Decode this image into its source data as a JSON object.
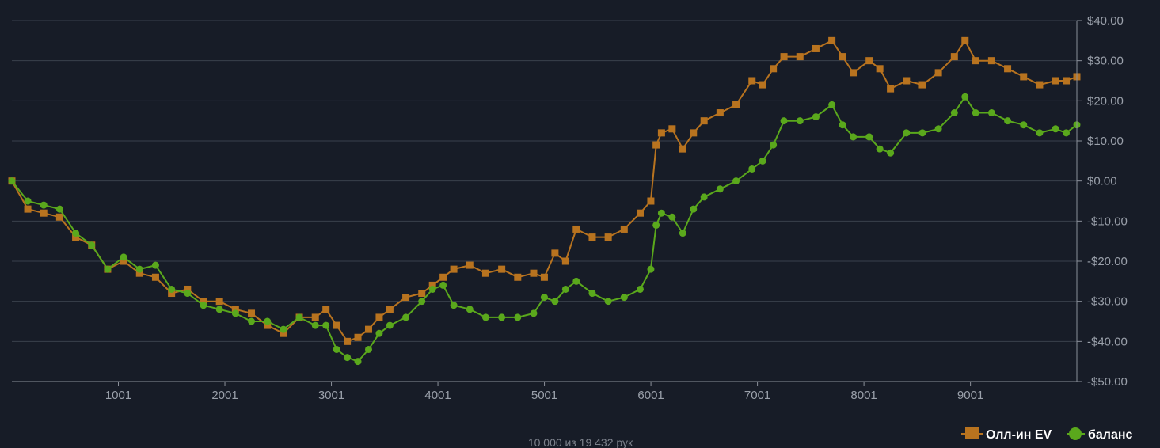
{
  "colors": {
    "background": "#171c27",
    "grid": "#3a404c",
    "ev_series": "#b8731f",
    "balance_series": "#5aa81c"
  },
  "footer": {
    "text": "10 000 из 19 432 рук"
  },
  "chart_data": {
    "type": "scatter",
    "title": "",
    "xlabel": "",
    "ylabel": "",
    "xlim": [
      1,
      10000
    ],
    "ylim": [
      -50,
      40
    ],
    "x_ticks": [
      1001,
      2001,
      3001,
      4001,
      5001,
      6001,
      7001,
      8001,
      9001
    ],
    "x_tick_labels": [
      "1001",
      "2001",
      "3001",
      "4001",
      "5001",
      "6001",
      "7001",
      "8001",
      "9001"
    ],
    "y_ticks": [
      40,
      30,
      20,
      10,
      0,
      -10,
      -20,
      -30,
      -40,
      -50
    ],
    "y_tick_labels": [
      "$40.00",
      "$30.00",
      "$20.00",
      "$10.00",
      "$0.00",
      "-$10.00",
      "-$20.00",
      "-$30.00",
      "-$40.00",
      "-$50.00"
    ],
    "y_axis_position": "right",
    "grid": true,
    "legend_position": "bottom-right",
    "x": [
      1,
      150,
      300,
      450,
      600,
      750,
      900,
      1050,
      1200,
      1350,
      1500,
      1650,
      1800,
      1950,
      2100,
      2250,
      2400,
      2550,
      2700,
      2850,
      2950,
      3050,
      3150,
      3250,
      3350,
      3450,
      3550,
      3700,
      3850,
      3950,
      4050,
      4150,
      4300,
      4450,
      4600,
      4750,
      4900,
      5000,
      5100,
      5200,
      5300,
      5450,
      5600,
      5750,
      5900,
      6000,
      6050,
      6100,
      6200,
      6300,
      6400,
      6500,
      6650,
      6800,
      6950,
      7050,
      7150,
      7250,
      7400,
      7550,
      7700,
      7800,
      7900,
      8050,
      8150,
      8250,
      8400,
      8550,
      8700,
      8850,
      8950,
      9050,
      9200,
      9350,
      9500,
      9650,
      9800,
      9900,
      10000
    ],
    "series": [
      {
        "name": "Олл-ин EV",
        "marker": "square",
        "values": [
          0,
          -7,
          -8,
          -9,
          -14,
          -16,
          -22,
          -20,
          -23,
          -24,
          -28,
          -27,
          -30,
          -30,
          -32,
          -33,
          -36,
          -38,
          -34,
          -34,
          -32,
          -36,
          -40,
          -39,
          -37,
          -34,
          -32,
          -29,
          -28,
          -26,
          -24,
          -22,
          -21,
          -23,
          -22,
          -24,
          -23,
          -24,
          -18,
          -20,
          -12,
          -14,
          -14,
          -12,
          -8,
          -5,
          9,
          12,
          13,
          8,
          12,
          15,
          17,
          19,
          25,
          24,
          28,
          31,
          31,
          33,
          35,
          31,
          27,
          30,
          28,
          23,
          25,
          24,
          27,
          31,
          35,
          30,
          30,
          28,
          26,
          24,
          25,
          25,
          26
        ]
      },
      {
        "name": "баланс",
        "marker": "circle",
        "values": [
          0,
          -5,
          -6,
          -7,
          -13,
          -16,
          -22,
          -19,
          -22,
          -21,
          -27,
          -28,
          -31,
          -32,
          -33,
          -35,
          -35,
          -37,
          -34,
          -36,
          -36,
          -42,
          -44,
          -45,
          -42,
          -38,
          -36,
          -34,
          -30,
          -27,
          -26,
          -31,
          -32,
          -34,
          -34,
          -34,
          -33,
          -29,
          -30,
          -27,
          -25,
          -28,
          -30,
          -29,
          -27,
          -22,
          -11,
          -8,
          -9,
          -13,
          -7,
          -4,
          -2,
          0,
          3,
          5,
          9,
          15,
          15,
          16,
          19,
          14,
          11,
          11,
          8,
          7,
          12,
          12,
          13,
          17,
          21,
          17,
          17,
          15,
          14,
          12,
          13,
          12,
          14
        ]
      }
    ]
  }
}
